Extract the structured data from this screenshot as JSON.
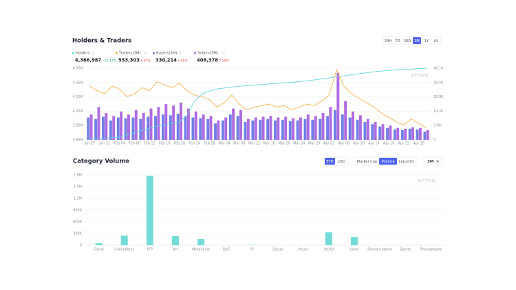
{
  "chart_data": [
    {
      "type": "combo",
      "title": "Holders & Traders",
      "ranges": [
        "24H",
        "7D",
        "30D",
        "3M",
        "1Y",
        "All"
      ],
      "selected_range": 3,
      "watermark": "NFTGO",
      "categories": [
        "Jan 27",
        null,
        "Jan 31",
        null,
        "Feb 04",
        null,
        "Feb 08",
        null,
        "Feb 12",
        null,
        "Feb 16",
        null,
        "Feb 20",
        null,
        "Feb 24",
        null,
        "Feb 28",
        null,
        "Mar 04",
        null,
        "Mar 08",
        null,
        "Mar 12",
        null,
        "Mar 16",
        null,
        "Mar 20",
        null,
        "Mar 24",
        null,
        "Mar 29",
        null,
        "Apr 02",
        null,
        "Apr 06",
        null,
        "Apr 10",
        null,
        "Apr 14",
        null,
        "Apr 18",
        null,
        "Apr 22",
        null,
        "Apr 26",
        null
      ],
      "ylim": [
        3850000,
        4350000
      ],
      "yticks": [
        {
          "value": 3850000,
          "label": "3.85M"
        },
        {
          "value": 3950000,
          "label": "3.95M"
        },
        {
          "value": 4050000,
          "label": "4.05M"
        },
        {
          "value": 4150000,
          "label": "4.15M"
        },
        {
          "value": 4250000,
          "label": "4.25M"
        },
        {
          "value": 4350000,
          "label": "4.35M"
        }
      ],
      "y2lim": [
        0,
        48100
      ],
      "y2ticks": [
        0,
        {
          "value": 9600,
          "label": "9.6K"
        },
        {
          "value": 19200,
          "label": "19.2K"
        },
        {
          "value": 28900,
          "label": "28.9K"
        },
        {
          "value": 38500,
          "label": "38.5K"
        },
        {
          "value": 48100,
          "label": "48.1K"
        }
      ],
      "grid": true,
      "series": [
        {
          "name": "Holders",
          "type": "line",
          "color": "#63d3d8",
          "current": "4,366,987",
          "change": "+12.17%",
          "values": [
            3856000,
            3860000,
            3863000,
            3866000,
            3870000,
            3885000,
            3900000,
            3915000,
            3930000,
            3945000,
            3955000,
            3965000,
            3975000,
            4020000,
            4120000,
            4170000,
            4190000,
            4205000,
            4212000,
            4218000,
            4224000,
            4228000,
            4232000,
            4236000,
            4240000,
            4244000,
            4248000,
            4252000,
            4256000,
            4262000,
            4268000,
            4275000,
            4282000,
            4290000,
            4297000,
            4304000,
            4311000,
            4318000,
            4325000,
            4330000,
            4334000,
            4338000,
            4341000,
            4344000,
            4347000,
            4349000
          ]
        },
        {
          "name": "Traders(3M)",
          "type": "line",
          "axis": "y2",
          "color": "#f2b24c",
          "current": "553,303",
          "change": "-6.67%",
          "values": [
            36000,
            33000,
            31000,
            36000,
            34000,
            29000,
            31000,
            35000,
            33000,
            39000,
            37000,
            35000,
            38000,
            33000,
            30000,
            29000,
            27000,
            22000,
            25000,
            30000,
            24000,
            20000,
            22000,
            23000,
            24000,
            22000,
            23000,
            20000,
            22000,
            24000,
            23000,
            26000,
            30000,
            47000,
            36000,
            31000,
            28000,
            25000,
            22000,
            18000,
            15000,
            12000,
            10000,
            14000,
            11000,
            8000
          ]
        },
        {
          "name": "Buyers(3M)",
          "type": "bar",
          "axis": "y2",
          "color": "#6f7fe6",
          "current": "330,214",
          "change": "-3.05%",
          "values": [
            15000,
            14000,
            15500,
            13000,
            15000,
            14500,
            15000,
            14000,
            15500,
            16000,
            17000,
            16500,
            17500,
            16000,
            15000,
            14500,
            14000,
            11000,
            13000,
            17000,
            16000,
            12000,
            13000,
            13500,
            14000,
            13000,
            13500,
            12500,
            13000,
            14000,
            13500,
            14000,
            16000,
            20000,
            17000,
            15000,
            13500,
            12000,
            10500,
            9000,
            8000,
            7000,
            6500,
            7500,
            7000,
            5500
          ]
        },
        {
          "name": "Sellers(3M)",
          "type": "bar",
          "axis": "y2",
          "color": "#b06ae0",
          "current": "406,378",
          "change": "-7.29%",
          "values": [
            17000,
            22000,
            18000,
            16000,
            19000,
            17000,
            20000,
            18000,
            21000,
            22000,
            24000,
            23000,
            25000,
            21000,
            19000,
            17000,
            16000,
            13000,
            15000,
            21000,
            20000,
            14000,
            15000,
            15500,
            16000,
            15000,
            15500,
            14500,
            15000,
            17000,
            16000,
            18000,
            22000,
            45000,
            26000,
            19000,
            16500,
            14000,
            12000,
            10500,
            9500,
            8000,
            7500,
            8500,
            8000,
            6500
          ]
        }
      ]
    },
    {
      "type": "bar",
      "title": "Category Volume",
      "currency_options": [
        "ETH",
        "USD"
      ],
      "selected_currency": 0,
      "metric_options": [
        "Market Cap",
        "Volume",
        "Liquidity"
      ],
      "selected_metric": 1,
      "period": "3M",
      "watermark": "NFTGO",
      "categories": [
        "Game",
        "Collectibles",
        "PFP",
        "Art",
        "Metaverse",
        "DeFi",
        "IP",
        "Social",
        "Music",
        "Utility",
        "Land",
        "Domain Name",
        "Sports",
        "Photography"
      ],
      "values": [
        50000,
        250000,
        1780000,
        230000,
        160000,
        0,
        10000,
        0,
        0,
        330000,
        210000,
        0,
        0,
        0
      ],
      "color": "#74dcd8",
      "ylim": [
        0,
        1800000
      ],
      "yticks": [
        0,
        {
          "value": 300000,
          "label": "300K"
        },
        {
          "value": 600000,
          "label": "600K"
        },
        {
          "value": 900000,
          "label": "900K"
        },
        {
          "value": 1200000,
          "label": "1.2M"
        },
        {
          "value": 1500000,
          "label": "1.5M"
        },
        {
          "value": 1800000,
          "label": "1.8M"
        }
      ],
      "grid": true
    }
  ]
}
